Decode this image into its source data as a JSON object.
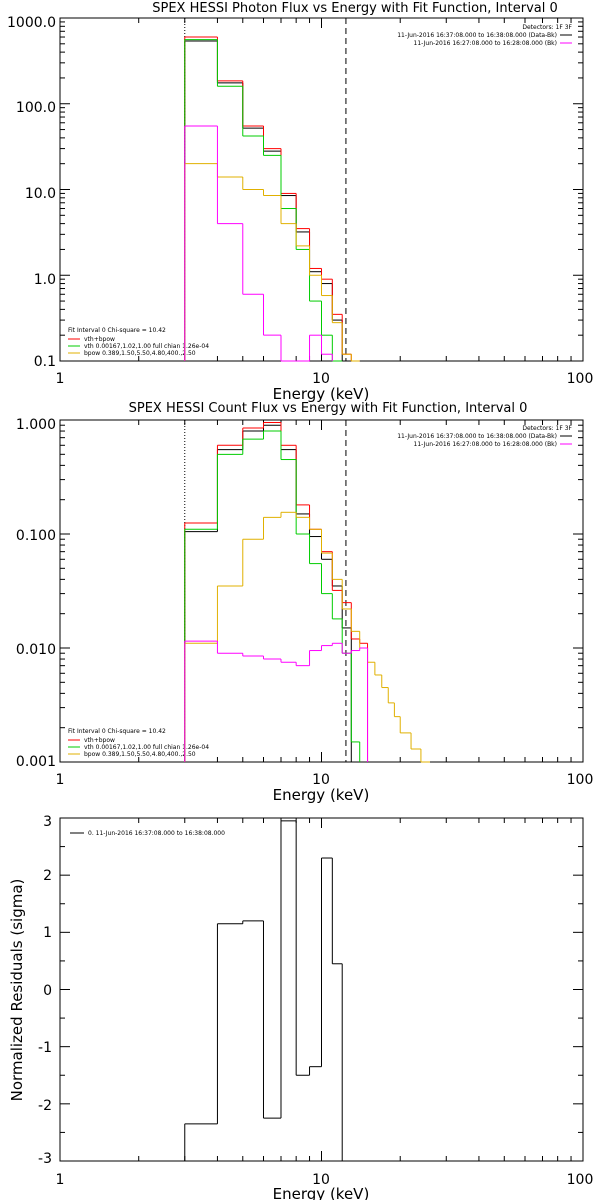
{
  "colors": {
    "data": "#000000",
    "total": "#ff0000",
    "vth": "#00cc00",
    "bpow": "#e0b000",
    "bkg": "#ff00ff"
  },
  "chart_data": [
    {
      "type": "line",
      "step": true,
      "title": "SPEX HESSI Photon Flux vs Energy with Fit Function, Interval 0",
      "xlabel": "Energy (keV)",
      "ylabel": "",
      "xscale": "log",
      "yscale": "log",
      "xlim": [
        1,
        100
      ],
      "ylim": [
        0.1,
        1000
      ],
      "xticks": [
        {
          "v": 1,
          "label": "1"
        },
        {
          "v": 10,
          "label": "10"
        },
        {
          "v": 100,
          "label": "100"
        }
      ],
      "yticks": [
        {
          "v": 0.1,
          "label": "0.1"
        },
        {
          "v": 1,
          "label": "1.0"
        },
        {
          "v": 10,
          "label": "10.0"
        },
        {
          "v": 100,
          "label": "100.0"
        },
        {
          "v": 1000,
          "label": "1000.0"
        }
      ],
      "xmin_line": 3,
      "xmax_line": 12.4,
      "legend_topright": [
        "Detectors: 1F 3F",
        "11-Jun-2016 16:37:08.000 to 16:38:08.000 (Data-Bk)",
        "11-Jun-2016 16:27:08.000 to 16:28:08.000 (Bk)"
      ],
      "legend_bottomleft": [
        "Fit Interval 0   Chi-square = 10.42",
        "vth+bpow",
        "vth 0.00167,1.02,1.00  full chian 1.26e-04",
        "bpow 0.389,1.50,5.50,4.80,400.,2.50"
      ],
      "edges": [
        3,
        4,
        5,
        6,
        7,
        8,
        9,
        10,
        11,
        12,
        13,
        14,
        15,
        16,
        17,
        18,
        19,
        20,
        22,
        24,
        26,
        28,
        30
      ],
      "series": [
        {
          "name": "Data-Bk",
          "color_key": "data",
          "values": [
            540,
            175,
            52,
            28,
            8.5,
            3.2,
            1.1,
            0.8,
            0.3,
            0.08,
            null,
            null,
            null,
            null,
            null,
            null,
            null,
            null,
            null,
            null,
            null,
            null
          ]
        },
        {
          "name": "vth+bpow",
          "color_key": "total",
          "values": [
            600,
            185,
            55,
            30,
            9.0,
            3.5,
            1.2,
            0.9,
            0.35,
            0.12,
            0.1,
            null,
            null,
            null,
            null,
            null,
            null,
            null,
            null,
            null,
            null,
            null
          ]
        },
        {
          "name": "vth",
          "color_key": "vth",
          "values": [
            560,
            160,
            42,
            25,
            6.0,
            2.0,
            0.5,
            0.2,
            0.1,
            null,
            null,
            null,
            null,
            null,
            null,
            null,
            null,
            null,
            null,
            null,
            null,
            null
          ]
        },
        {
          "name": "bpow",
          "color_key": "bpow",
          "values": [
            20,
            14,
            10,
            8.5,
            4.0,
            2.2,
            1.0,
            0.58,
            0.28,
            0.12,
            0.09,
            null,
            null,
            null,
            null,
            null,
            null,
            null,
            null,
            null,
            null,
            null
          ]
        },
        {
          "name": "Bk",
          "color_key": "bkg",
          "values": [
            55,
            4.0,
            0.6,
            0.2,
            0.09,
            0.1,
            0.2,
            0.12,
            null,
            null,
            null,
            null,
            null,
            null,
            null,
            null,
            null,
            null,
            null,
            null,
            null,
            null
          ]
        }
      ]
    },
    {
      "type": "line",
      "step": true,
      "title": "SPEX HESSI Count Flux vs Energy with Fit Function, Interval 0",
      "xlabel": "Energy (keV)",
      "ylabel": "",
      "xscale": "log",
      "yscale": "log",
      "xlim": [
        1,
        100
      ],
      "ylim": [
        0.001,
        1
      ],
      "xticks": [
        {
          "v": 1,
          "label": "1"
        },
        {
          "v": 10,
          "label": "10"
        },
        {
          "v": 100,
          "label": "100"
        }
      ],
      "yticks": [
        {
          "v": 0.001,
          "label": "0.001"
        },
        {
          "v": 0.01,
          "label": "0.010"
        },
        {
          "v": 0.1,
          "label": "0.100"
        },
        {
          "v": 1,
          "label": "1.000"
        }
      ],
      "xmin_line": 3,
      "xmax_line": 12.4,
      "legend_topright": [
        "Detectors: 1F 3F",
        "11-Jun-2016 16:37:08.000 to 16:38:08.000 (Data-Bk)",
        "11-Jun-2016 16:27:08.000 to 16:28:08.000 (Bk)"
      ],
      "legend_bottomleft": [
        "Fit Interval 0   Chi-square = 10.42",
        "vth+bpow",
        "vth 0.00167,1.02,1.00  full chian 1.26e-04",
        "bpow 0.389,1.50,5.50,4.80,400.,2.50"
      ],
      "edges": [
        3,
        4,
        5,
        6,
        7,
        8,
        9,
        10,
        11,
        12,
        13,
        14,
        15,
        16,
        17,
        18,
        19,
        20,
        22,
        24,
        26,
        28,
        30
      ],
      "series": [
        {
          "name": "Data-Bk",
          "color_key": "data",
          "values": [
            0.105,
            0.55,
            0.8,
            0.9,
            0.55,
            0.15,
            0.095,
            0.06,
            0.035,
            0.015,
            null,
            null,
            null,
            null,
            null,
            null,
            null,
            null,
            null,
            null,
            null,
            null
          ]
        },
        {
          "name": "vth+bpow",
          "color_key": "total",
          "values": [
            0.125,
            0.6,
            0.85,
            0.95,
            0.6,
            0.18,
            0.11,
            0.07,
            0.032,
            0.025,
            0.012,
            0.011,
            null,
            null,
            null,
            null,
            null,
            null,
            null,
            null,
            null,
            null
          ]
        },
        {
          "name": "vth",
          "color_key": "vth",
          "values": [
            0.11,
            0.5,
            0.68,
            0.8,
            0.45,
            0.1,
            0.055,
            0.03,
            0.018,
            0.009,
            0.0015,
            null,
            null,
            null,
            null,
            null,
            null,
            null,
            null,
            null,
            null,
            null
          ]
        },
        {
          "name": "bpow",
          "color_key": "bpow",
          "values": [
            0.011,
            0.035,
            0.09,
            0.14,
            0.155,
            0.14,
            0.11,
            0.068,
            0.04,
            0.022,
            0.014,
            0.01,
            0.0075,
            0.0058,
            0.0045,
            0.0033,
            0.0025,
            0.0018,
            0.0013,
            0.001,
            null,
            null
          ]
        },
        {
          "name": "Bk",
          "color_key": "bkg",
          "values": [
            0.0115,
            0.009,
            0.0085,
            0.008,
            0.0075,
            0.007,
            0.0095,
            0.0105,
            0.011,
            0.009,
            0.0095,
            0.01,
            null,
            null,
            null,
            null,
            null,
            null,
            null,
            null,
            null,
            null
          ]
        }
      ]
    },
    {
      "type": "line",
      "step": true,
      "title": "",
      "xlabel": "Energy (keV)",
      "ylabel": "Normalized Residuals (sigma)",
      "xscale": "log",
      "yscale": "linear",
      "xlim": [
        1,
        100
      ],
      "ylim": [
        -3,
        3
      ],
      "xticks": [
        {
          "v": 1,
          "label": "1"
        },
        {
          "v": 10,
          "label": "10"
        },
        {
          "v": 100,
          "label": "100"
        }
      ],
      "yticks": [
        {
          "v": -3,
          "label": "-3"
        },
        {
          "v": -2,
          "label": "-2"
        },
        {
          "v": -1,
          "label": "-1"
        },
        {
          "v": 0,
          "label": "0"
        },
        {
          "v": 1,
          "label": "1"
        },
        {
          "v": 2,
          "label": "2"
        },
        {
          "v": 3,
          "label": "3"
        }
      ],
      "legend_topright": [],
      "legend_bottomleft": [],
      "legend_topleft": "0. 11-Jun-2016 16:37:08.000 to 16:38:08.000",
      "edges": [
        3,
        4,
        5,
        6,
        7,
        8,
        9,
        10,
        11,
        12,
        13
      ],
      "series": [
        {
          "name": "0. 11-Jun-2016 16:37:08.000 to 16:38:08.000",
          "color_key": "data",
          "values": [
            -2.35,
            1.15,
            1.2,
            -2.25,
            2.95,
            -1.5,
            -1.35,
            2.3,
            0.45,
            -3.2
          ]
        }
      ]
    }
  ]
}
